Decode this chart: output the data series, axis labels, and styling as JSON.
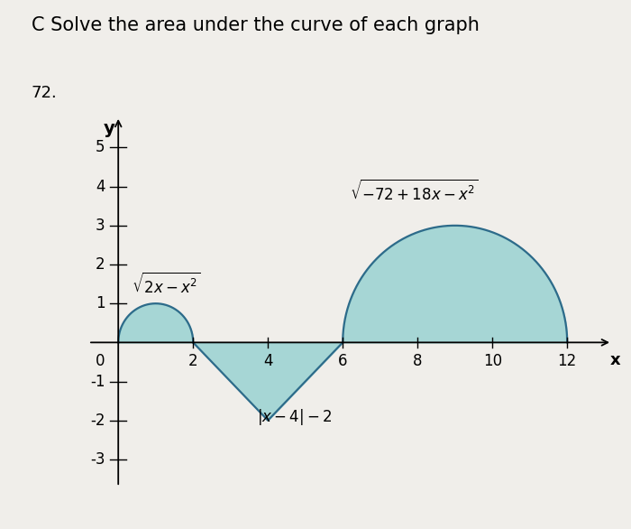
{
  "title": "C Solve the area under the curve of each graph",
  "problem_number": "72.",
  "xlabel": "x",
  "ylabel": "y",
  "xlim": [
    -0.8,
    13.2
  ],
  "ylim": [
    -3.7,
    5.8
  ],
  "xticks": [
    2,
    4,
    6,
    8,
    10,
    12
  ],
  "yticks": [
    -3,
    -2,
    -1,
    1,
    2,
    3,
    4,
    5
  ],
  "fill_color": "#8ecece",
  "fill_alpha": 0.75,
  "line_color": "#2d6b8a",
  "line_width": 1.6,
  "background_color": "#f0eeea",
  "title_fontsize": 15,
  "label_fontsize": 12,
  "tick_fontsize": 12
}
